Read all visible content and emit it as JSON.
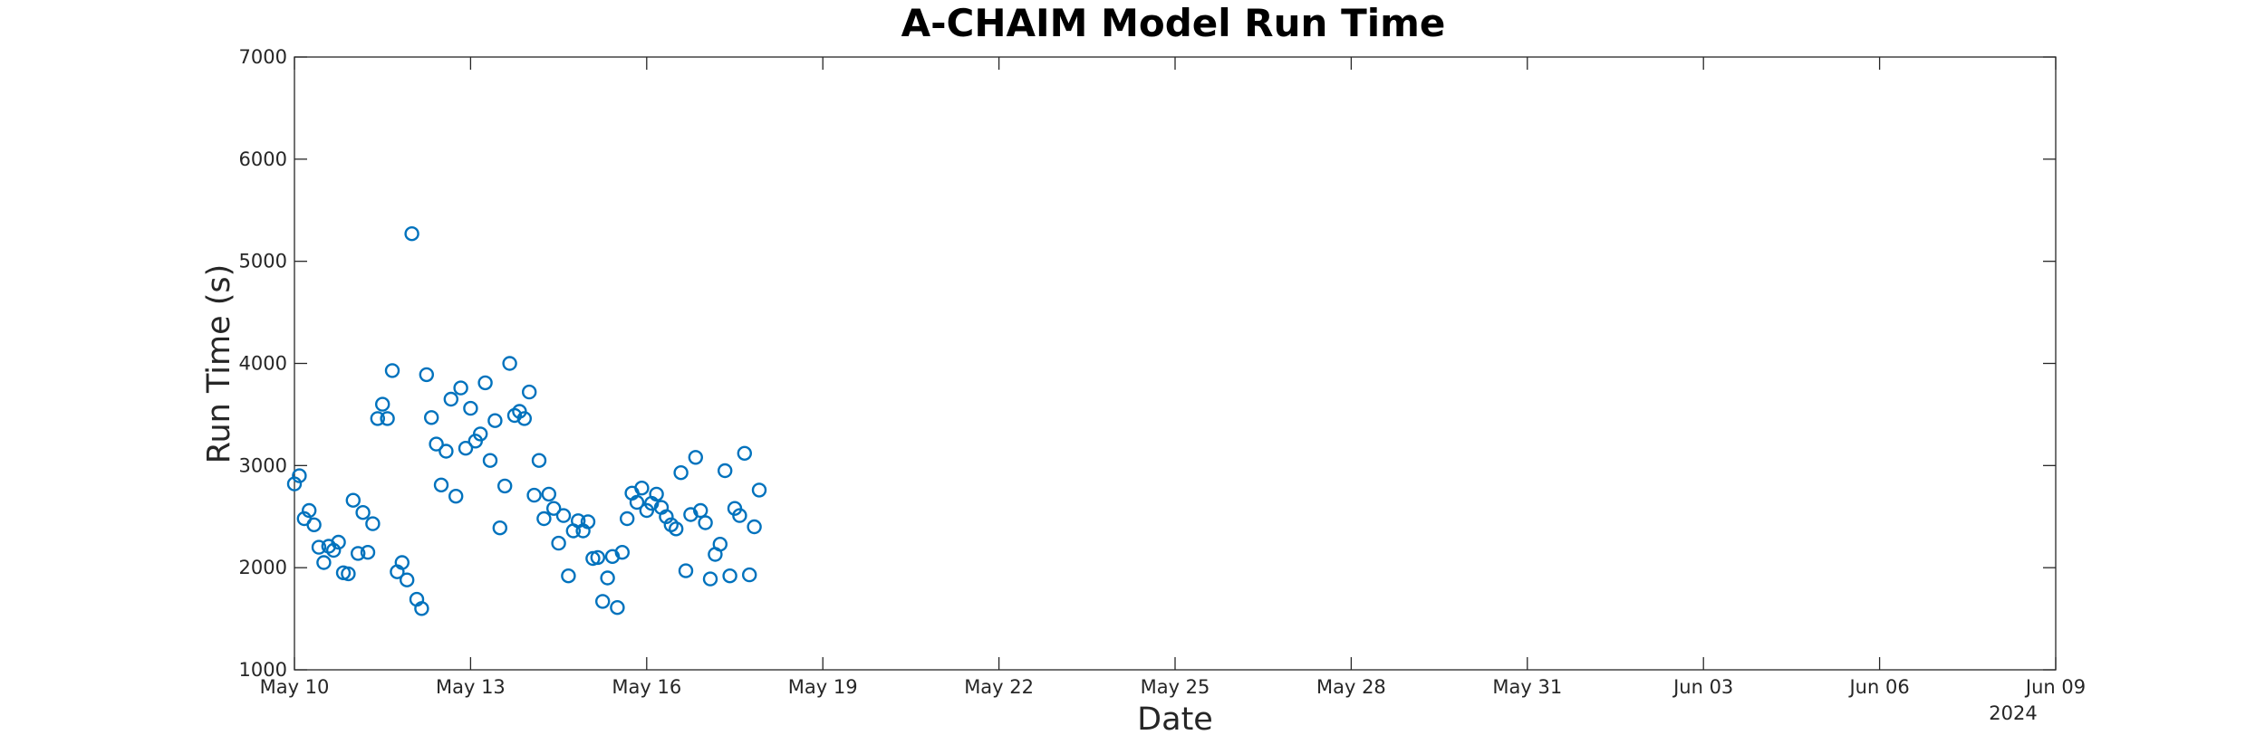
{
  "chart_data": {
    "type": "scatter",
    "title": "A-CHAIM Model Run Time",
    "xlabel": "Date",
    "ylabel": "Run Time (s)",
    "year_label": "2024",
    "x_range": [
      "2024-05-10",
      "2024-06-09"
    ],
    "ylim": [
      1000,
      7000
    ],
    "y_ticks": [
      "1000",
      "2000",
      "3000",
      "4000",
      "5000",
      "6000",
      "7000"
    ],
    "x_ticks": [
      {
        "date": "2024-05-10",
        "label": "May 10"
      },
      {
        "date": "2024-05-13",
        "label": "May 13"
      },
      {
        "date": "2024-05-16",
        "label": "May 16"
      },
      {
        "date": "2024-05-19",
        "label": "May 19"
      },
      {
        "date": "2024-05-22",
        "label": "May 22"
      },
      {
        "date": "2024-05-25",
        "label": "May 25"
      },
      {
        "date": "2024-05-28",
        "label": "May 28"
      },
      {
        "date": "2024-05-31",
        "label": "May 31"
      },
      {
        "date": "2024-06-03",
        "label": "Jun 03"
      },
      {
        "date": "2024-06-06",
        "label": "Jun 06"
      },
      {
        "date": "2024-06-09",
        "label": "Jun 09"
      }
    ],
    "marker": "circle-open",
    "grid": false,
    "colors": {
      "series": "#0072BD",
      "axes": "#262626"
    },
    "series": [
      {
        "values": [
          [
            "2024-05-10 00:00",
            2820
          ],
          [
            "2024-05-10 02:00",
            2900
          ],
          [
            "2024-05-10 04:00",
            2480
          ],
          [
            "2024-05-10 06:00",
            2560
          ],
          [
            "2024-05-10 08:00",
            2420
          ],
          [
            "2024-05-10 10:00",
            2200
          ],
          [
            "2024-05-10 12:00",
            2050
          ],
          [
            "2024-05-10 14:00",
            2210
          ],
          [
            "2024-05-10 16:00",
            2170
          ],
          [
            "2024-05-10 18:00",
            2250
          ],
          [
            "2024-05-10 20:00",
            1950
          ],
          [
            "2024-05-10 22:00",
            1940
          ],
          [
            "2024-05-11 00:00",
            2660
          ],
          [
            "2024-05-11 02:00",
            2140
          ],
          [
            "2024-05-11 04:00",
            2540
          ],
          [
            "2024-05-11 06:00",
            2150
          ],
          [
            "2024-05-11 08:00",
            2430
          ],
          [
            "2024-05-11 10:00",
            3460
          ],
          [
            "2024-05-11 12:00",
            3600
          ],
          [
            "2024-05-11 14:00",
            3460
          ],
          [
            "2024-05-11 16:00",
            3930
          ],
          [
            "2024-05-11 18:00",
            1960
          ],
          [
            "2024-05-11 20:00",
            2050
          ],
          [
            "2024-05-11 22:00",
            1880
          ],
          [
            "2024-05-12 00:00",
            5270
          ],
          [
            "2024-05-12 02:00",
            1690
          ],
          [
            "2024-05-12 04:00",
            1600
          ],
          [
            "2024-05-12 06:00",
            3890
          ],
          [
            "2024-05-12 08:00",
            3470
          ],
          [
            "2024-05-12 10:00",
            3210
          ],
          [
            "2024-05-12 12:00",
            2810
          ],
          [
            "2024-05-12 14:00",
            3140
          ],
          [
            "2024-05-12 16:00",
            3650
          ],
          [
            "2024-05-12 18:00",
            2700
          ],
          [
            "2024-05-12 20:00",
            3760
          ],
          [
            "2024-05-12 22:00",
            3170
          ],
          [
            "2024-05-13 00:00",
            3560
          ],
          [
            "2024-05-13 02:00",
            3240
          ],
          [
            "2024-05-13 04:00",
            3310
          ],
          [
            "2024-05-13 06:00",
            3810
          ],
          [
            "2024-05-13 08:00",
            3050
          ],
          [
            "2024-05-13 10:00",
            3440
          ],
          [
            "2024-05-13 12:00",
            2390
          ],
          [
            "2024-05-13 14:00",
            2800
          ],
          [
            "2024-05-13 16:00",
            4000
          ],
          [
            "2024-05-13 18:00",
            3490
          ],
          [
            "2024-05-13 20:00",
            3530
          ],
          [
            "2024-05-13 22:00",
            3460
          ],
          [
            "2024-05-14 00:00",
            3720
          ],
          [
            "2024-05-14 02:00",
            2710
          ],
          [
            "2024-05-14 04:00",
            3050
          ],
          [
            "2024-05-14 06:00",
            2480
          ],
          [
            "2024-05-14 08:00",
            2720
          ],
          [
            "2024-05-14 10:00",
            2580
          ],
          [
            "2024-05-14 12:00",
            2240
          ],
          [
            "2024-05-14 14:00",
            2510
          ],
          [
            "2024-05-14 16:00",
            1920
          ],
          [
            "2024-05-14 18:00",
            2360
          ],
          [
            "2024-05-14 20:00",
            2460
          ],
          [
            "2024-05-14 22:00",
            2360
          ],
          [
            "2024-05-15 00:00",
            2450
          ],
          [
            "2024-05-15 02:00",
            2090
          ],
          [
            "2024-05-15 04:00",
            2100
          ],
          [
            "2024-05-15 06:00",
            1670
          ],
          [
            "2024-05-15 08:00",
            1900
          ],
          [
            "2024-05-15 10:00",
            2110
          ],
          [
            "2024-05-15 12:00",
            1610
          ],
          [
            "2024-05-15 14:00",
            2150
          ],
          [
            "2024-05-15 16:00",
            2480
          ],
          [
            "2024-05-15 18:00",
            2730
          ],
          [
            "2024-05-15 20:00",
            2640
          ],
          [
            "2024-05-15 22:00",
            2780
          ],
          [
            "2024-05-16 00:00",
            2560
          ],
          [
            "2024-05-16 02:00",
            2630
          ],
          [
            "2024-05-16 04:00",
            2720
          ],
          [
            "2024-05-16 06:00",
            2590
          ],
          [
            "2024-05-16 08:00",
            2500
          ],
          [
            "2024-05-16 10:00",
            2420
          ],
          [
            "2024-05-16 12:00",
            2380
          ],
          [
            "2024-05-16 14:00",
            2930
          ],
          [
            "2024-05-16 16:00",
            1970
          ],
          [
            "2024-05-16 18:00",
            2520
          ],
          [
            "2024-05-16 20:00",
            3080
          ],
          [
            "2024-05-16 22:00",
            2560
          ],
          [
            "2024-05-17 00:00",
            2440
          ],
          [
            "2024-05-17 02:00",
            1890
          ],
          [
            "2024-05-17 04:00",
            2130
          ],
          [
            "2024-05-17 06:00",
            2230
          ],
          [
            "2024-05-17 08:00",
            2950
          ],
          [
            "2024-05-17 10:00",
            1920
          ],
          [
            "2024-05-17 12:00",
            2580
          ],
          [
            "2024-05-17 14:00",
            2510
          ],
          [
            "2024-05-17 16:00",
            3120
          ],
          [
            "2024-05-17 18:00",
            1930
          ],
          [
            "2024-05-17 20:00",
            2400
          ],
          [
            "2024-05-17 22:00",
            2760
          ]
        ]
      }
    ]
  }
}
